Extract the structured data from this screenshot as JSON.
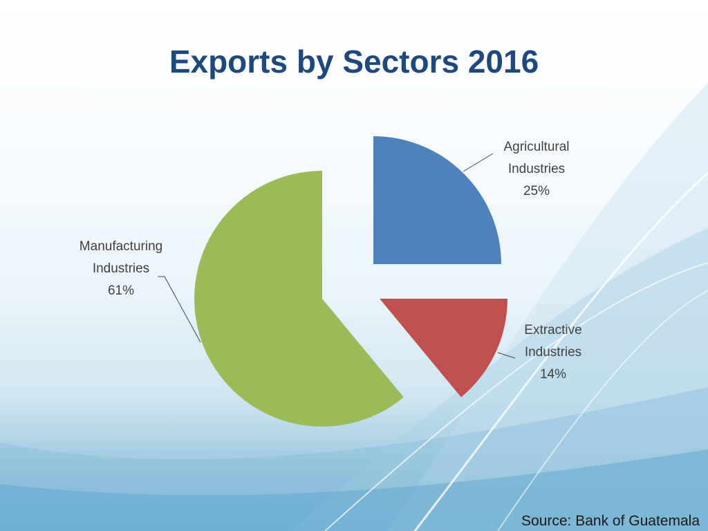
{
  "slide": {
    "title": "Exports by Sectors 2016",
    "source": "Source: Bank of Guatemala"
  },
  "chart_data": {
    "type": "pie",
    "title": "Exports by Sectors 2016",
    "exploded": true,
    "start_angle_deg": 0,
    "slices": [
      {
        "label_lines": [
          "Agricultural",
          "Industries",
          "25%"
        ],
        "value": 25,
        "color": "#4f81bd"
      },
      {
        "label_lines": [
          "Extractive",
          "Industries",
          "14%"
        ],
        "value": 14,
        "color": "#c0504d"
      },
      {
        "label_lines": [
          "Manufacturing",
          "Industries",
          "61%"
        ],
        "value": 61,
        "color": "#9bbb59"
      }
    ]
  }
}
